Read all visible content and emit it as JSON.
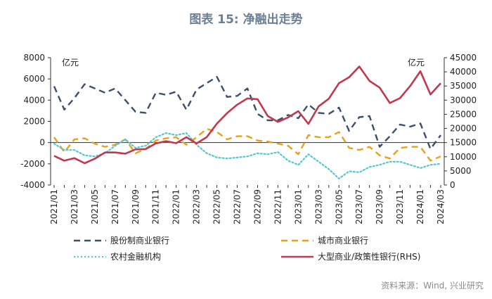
{
  "title": "图表 15: 净融出走势",
  "source": "资料来源：Wind, 兴业研究",
  "chart_data": {
    "type": "line",
    "title": "图表 15: 净融出走势",
    "left_unit": "亿元",
    "right_unit": "亿元",
    "ylim_left": [
      -4000,
      8000
    ],
    "yticks_left": [
      -4000,
      -2000,
      0,
      2000,
      4000,
      6000,
      8000
    ],
    "ylim_right": [
      0,
      45000
    ],
    "yticks_right": [
      0,
      5000,
      10000,
      15000,
      20000,
      25000,
      30000,
      35000,
      40000,
      45000
    ],
    "x": [
      "2021/01",
      "2021/02",
      "2021/03",
      "2021/04",
      "2021/05",
      "2021/06",
      "2021/07",
      "2021/08",
      "2021/09",
      "2021/10",
      "2021/11",
      "2021/12",
      "2022/01",
      "2022/02",
      "2022/03",
      "2022/04",
      "2022/05",
      "2022/06",
      "2022/07",
      "2022/08",
      "2022/09",
      "2022/10",
      "2022/11",
      "2022/12",
      "2023/01",
      "2023/02",
      "2023/03",
      "2023/04",
      "2023/05",
      "2023/06",
      "2023/07",
      "2023/08",
      "2023/09",
      "2023/10",
      "2023/11",
      "2023/12",
      "2024/01",
      "2024/02",
      "2024/03"
    ],
    "x_tick_labels": [
      "2021/01",
      "2021/03",
      "2021/05",
      "2021/07",
      "2021/09",
      "2021/11",
      "2022/01",
      "2022/03",
      "2022/05",
      "2022/07",
      "2022/09",
      "2022/11",
      "2023/01",
      "2023/03",
      "2023/05",
      "2023/07",
      "2023/09",
      "2023/11",
      "2024/01",
      "2024/03"
    ],
    "series": [
      {
        "name": "股份制商业银行",
        "axis": "left",
        "color": "#3b4e6e",
        "style": "dashed",
        "values": [
          5300,
          3100,
          4200,
          5500,
          5100,
          4700,
          5100,
          4000,
          2900,
          2800,
          4700,
          4500,
          4800,
          3100,
          5000,
          5600,
          6200,
          4300,
          4400,
          5100,
          2700,
          2100,
          2100,
          2600,
          2300,
          3600,
          2800,
          2700,
          3300,
          1100,
          2400,
          2500,
          -400,
          600,
          1700,
          1500,
          1800,
          -600,
          700
        ]
      },
      {
        "name": "城市商业银行",
        "axis": "left",
        "color": "#e6a21f",
        "style": "dashed",
        "values": [
          500,
          -900,
          300,
          400,
          -100,
          -400,
          -200,
          300,
          -1000,
          -600,
          200,
          400,
          500,
          -200,
          500,
          1300,
          1000,
          300,
          600,
          600,
          200,
          100,
          -100,
          -300,
          -1100,
          700,
          500,
          500,
          1000,
          -500,
          -700,
          -400,
          -1200,
          -1500,
          -500,
          -400,
          -400,
          -1700,
          -1300
        ]
      },
      {
        "name": "农村金融机构",
        "axis": "left",
        "color": "#56c7cf",
        "style": "dotted",
        "values": [
          -100,
          -700,
          -700,
          -1200,
          -1300,
          -1000,
          -300,
          300,
          -500,
          -300,
          500,
          900,
          700,
          900,
          -200,
          -1000,
          -1400,
          -1500,
          -1400,
          -1300,
          -1000,
          -1100,
          -900,
          -1700,
          -2100,
          -1100,
          -1800,
          -2500,
          -3400,
          -2700,
          -2800,
          -2300,
          -2100,
          -1800,
          -1800,
          -2100,
          -2400,
          -2100,
          -2000
        ]
      },
      {
        "name": "大型商业/政策性银行(RHS)",
        "axis": "right",
        "color": "#c2384f",
        "style": "solid",
        "values": [
          10300,
          8600,
          9500,
          7700,
          9300,
          11500,
          11500,
          11100,
          12600,
          12700,
          14700,
          15500,
          14800,
          16900,
          14700,
          16900,
          21700,
          25400,
          28400,
          30600,
          30300,
          24400,
          22300,
          23900,
          26100,
          21600,
          27800,
          30500,
          36000,
          38100,
          41900,
          36800,
          34400,
          29000,
          30700,
          35000,
          40200,
          32000,
          36000
        ]
      }
    ]
  }
}
